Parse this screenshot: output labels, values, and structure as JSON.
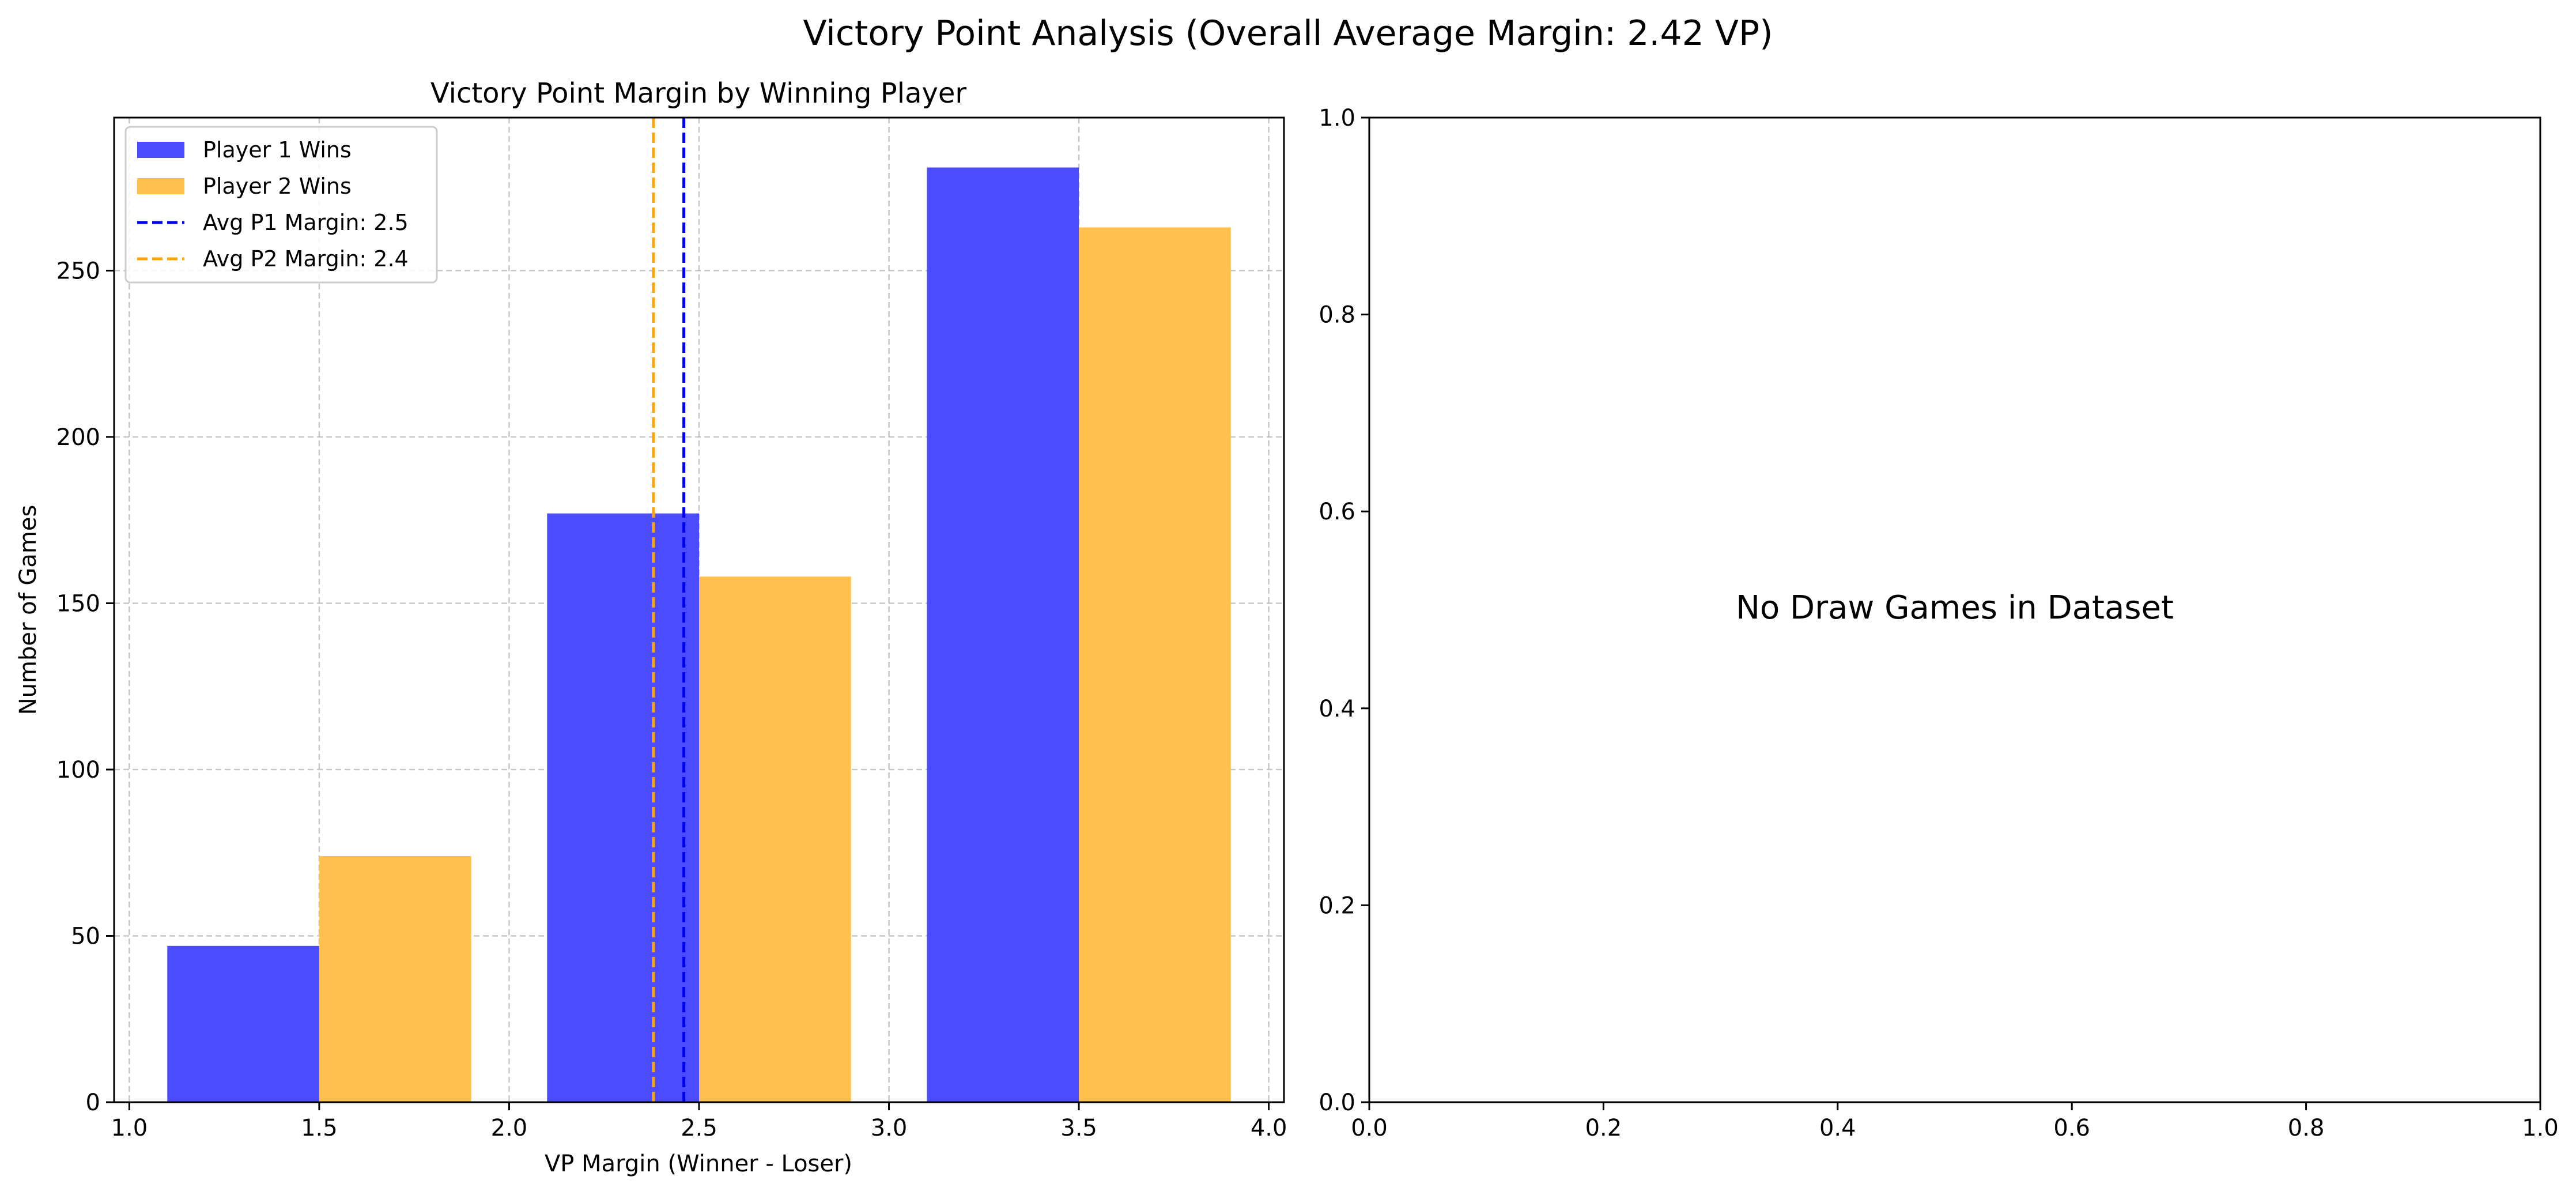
{
  "figure": {
    "suptitle": "Victory Point Analysis (Overall Average Margin: 2.42 VP)"
  },
  "chart_data": [
    {
      "type": "bar",
      "title": "Victory Point Margin by Winning Player",
      "xlabel": "VP Margin (Winner - Loser)",
      "ylabel": "Number of Games",
      "xlim": [
        0.96,
        4.04
      ],
      "ylim": [
        0,
        296
      ],
      "xticks": [
        1.0,
        1.5,
        2.0,
        2.5,
        3.0,
        3.5,
        4.0
      ],
      "xtick_labels": [
        "1.0",
        "1.5",
        "2.0",
        "2.5",
        "3.0",
        "3.5",
        "4.0"
      ],
      "yticks": [
        0,
        50,
        100,
        150,
        200,
        250
      ],
      "ytick_labels": [
        "0",
        "50",
        "100",
        "150",
        "200",
        "250"
      ],
      "grid": true,
      "legend_position": "upper-left",
      "categories": [
        1.5,
        2.5,
        3.5
      ],
      "bar_width": 0.4,
      "series": [
        {
          "name": "Player 1 Wins",
          "color": "#4b4bff",
          "offset": -0.2,
          "values": [
            47,
            177,
            281
          ]
        },
        {
          "name": "Player 2 Wins",
          "color": "#ffc04d",
          "offset": 0.2,
          "values": [
            74,
            158,
            263
          ]
        }
      ],
      "vlines": [
        {
          "name": "Avg P1 Margin: 2.5",
          "x": 2.46,
          "color": "#0000ee"
        },
        {
          "name": "Avg P2 Margin: 2.4",
          "x": 2.38,
          "color": "#ffa500"
        }
      ]
    },
    {
      "type": "scatter",
      "title": "",
      "xlim": [
        0.0,
        1.0
      ],
      "ylim": [
        0.0,
        1.0
      ],
      "xticks": [
        0.0,
        0.2,
        0.4,
        0.6,
        0.8,
        1.0
      ],
      "xtick_labels": [
        "0.0",
        "0.2",
        "0.4",
        "0.6",
        "0.8",
        "1.0"
      ],
      "yticks": [
        0.0,
        0.2,
        0.4,
        0.6,
        0.8,
        1.0
      ],
      "ytick_labels": [
        "0.0",
        "0.2",
        "0.4",
        "0.6",
        "0.8",
        "1.0"
      ],
      "grid": false,
      "series": [],
      "annotation": {
        "text": "No Draw Games in Dataset",
        "x": 0.5,
        "y": 0.5
      }
    }
  ]
}
